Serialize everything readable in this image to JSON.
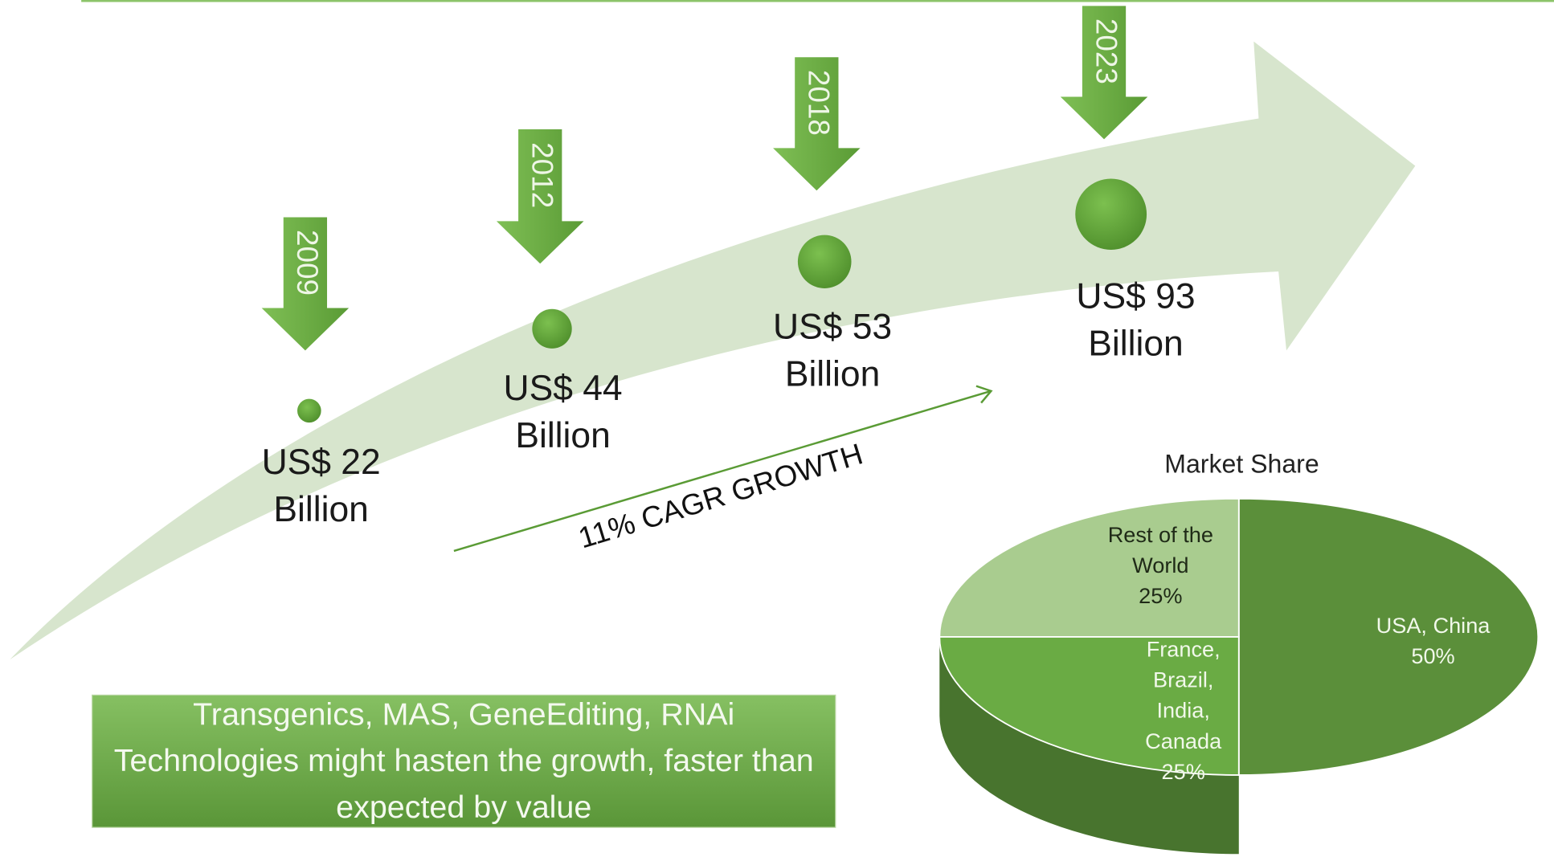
{
  "milestones": [
    {
      "year": "2009",
      "value": "US$ 22 Billion"
    },
    {
      "year": "2012",
      "value": "US$ 44 Billion"
    },
    {
      "year": "2018",
      "value": "US$ 53 Billion"
    },
    {
      "year": "2023",
      "value": "US$ 93 Billion"
    }
  ],
  "growth_label": "11% CAGR GROWTH",
  "note": "Transgenics, MAS, GeneEditing, RNAi Technologies might hasten the growth, faster than expected by value",
  "chart_data": {
    "type": "pie",
    "title": "Market Share",
    "categories": [
      "USA, China",
      "France, Brazil, India, Canada",
      "Rest of the World"
    ],
    "values": [
      50,
      25,
      25
    ],
    "value_labels": [
      "50%",
      "25%",
      "25%"
    ],
    "colors": [
      "#5b8f3a",
      "#6aab44",
      "#a9cc8f"
    ]
  }
}
